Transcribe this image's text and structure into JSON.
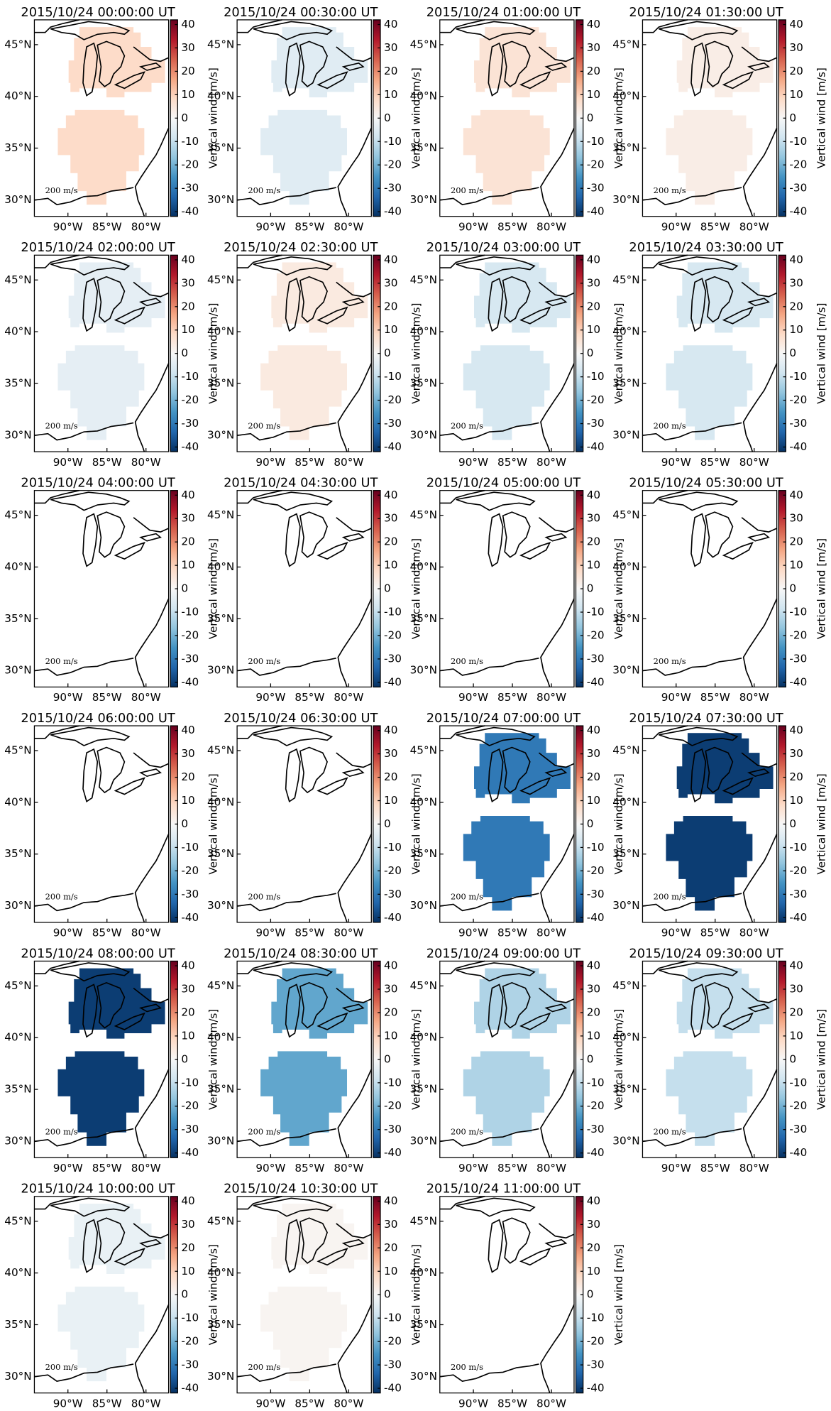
{
  "panels": [
    {
      "title": "2015/10/24 00:00:00 UT",
      "value": 8
    },
    {
      "title": "2015/10/24 00:30:00 UT",
      "value": -5
    },
    {
      "title": "2015/10/24 01:00:00 UT",
      "value": 6
    },
    {
      "title": "2015/10/24 01:30:00 UT",
      "value": 3
    },
    {
      "title": "2015/10/24 02:00:00 UT",
      "value": -4
    },
    {
      "title": "2015/10/24 02:30:00 UT",
      "value": 4
    },
    {
      "title": "2015/10/24 03:00:00 UT",
      "value": -7
    },
    {
      "title": "2015/10/24 03:30:00 UT",
      "value": -7
    },
    {
      "title": "2015/10/24 04:00:00 UT",
      "value": null
    },
    {
      "title": "2015/10/24 04:30:00 UT",
      "value": null
    },
    {
      "title": "2015/10/24 05:00:00 UT",
      "value": null
    },
    {
      "title": "2015/10/24 05:30:00 UT",
      "value": null
    },
    {
      "title": "2015/10/24 06:00:00 UT",
      "value": null
    },
    {
      "title": "2015/10/24 06:30:00 UT",
      "value": null
    },
    {
      "title": "2015/10/24 07:00:00 UT",
      "value": -30
    },
    {
      "title": "2015/10/24 07:30:00 UT",
      "value": -40
    },
    {
      "title": "2015/10/24 08:00:00 UT",
      "value": -40
    },
    {
      "title": "2015/10/24 08:30:00 UT",
      "value": -22
    },
    {
      "title": "2015/10/24 09:00:00 UT",
      "value": -13
    },
    {
      "title": "2015/10/24 09:30:00 UT",
      "value": -10
    },
    {
      "title": "2015/10/24 10:00:00 UT",
      "value": -3
    },
    {
      "title": "2015/10/24 10:30:00 UT",
      "value": 1
    },
    {
      "title": "2015/10/24 11:00:00 UT",
      "value": null
    }
  ],
  "colorbar_label": "Vertical wind [m/s]",
  "clim": [
    -42,
    42
  ],
  "cticks": [
    -40,
    -30,
    -20,
    -10,
    0,
    10,
    20,
    30,
    40
  ],
  "colorscale": [
    "#053061",
    "#2166ac",
    "#4393c3",
    "#92c5de",
    "#d1e5f0",
    "#f7f7f7",
    "#fddbc7",
    "#f4a582",
    "#d6604d",
    "#b2182b",
    "#67001f"
  ],
  "xlim": [
    -94.3,
    -77.1
  ],
  "ylim": [
    28.4,
    47.4
  ],
  "xticks": [
    {
      "value": -90,
      "label": "90°W"
    },
    {
      "value": -85,
      "label": "85°W"
    },
    {
      "value": -80,
      "label": "80°W"
    }
  ],
  "yticks": [
    {
      "value": 30,
      "label": "30°N"
    },
    {
      "value": 35,
      "label": "35°N"
    },
    {
      "value": 40,
      "label": "40°N"
    },
    {
      "value": 45,
      "label": "45°N"
    }
  ],
  "arrow_scale": "200 m/s"
}
